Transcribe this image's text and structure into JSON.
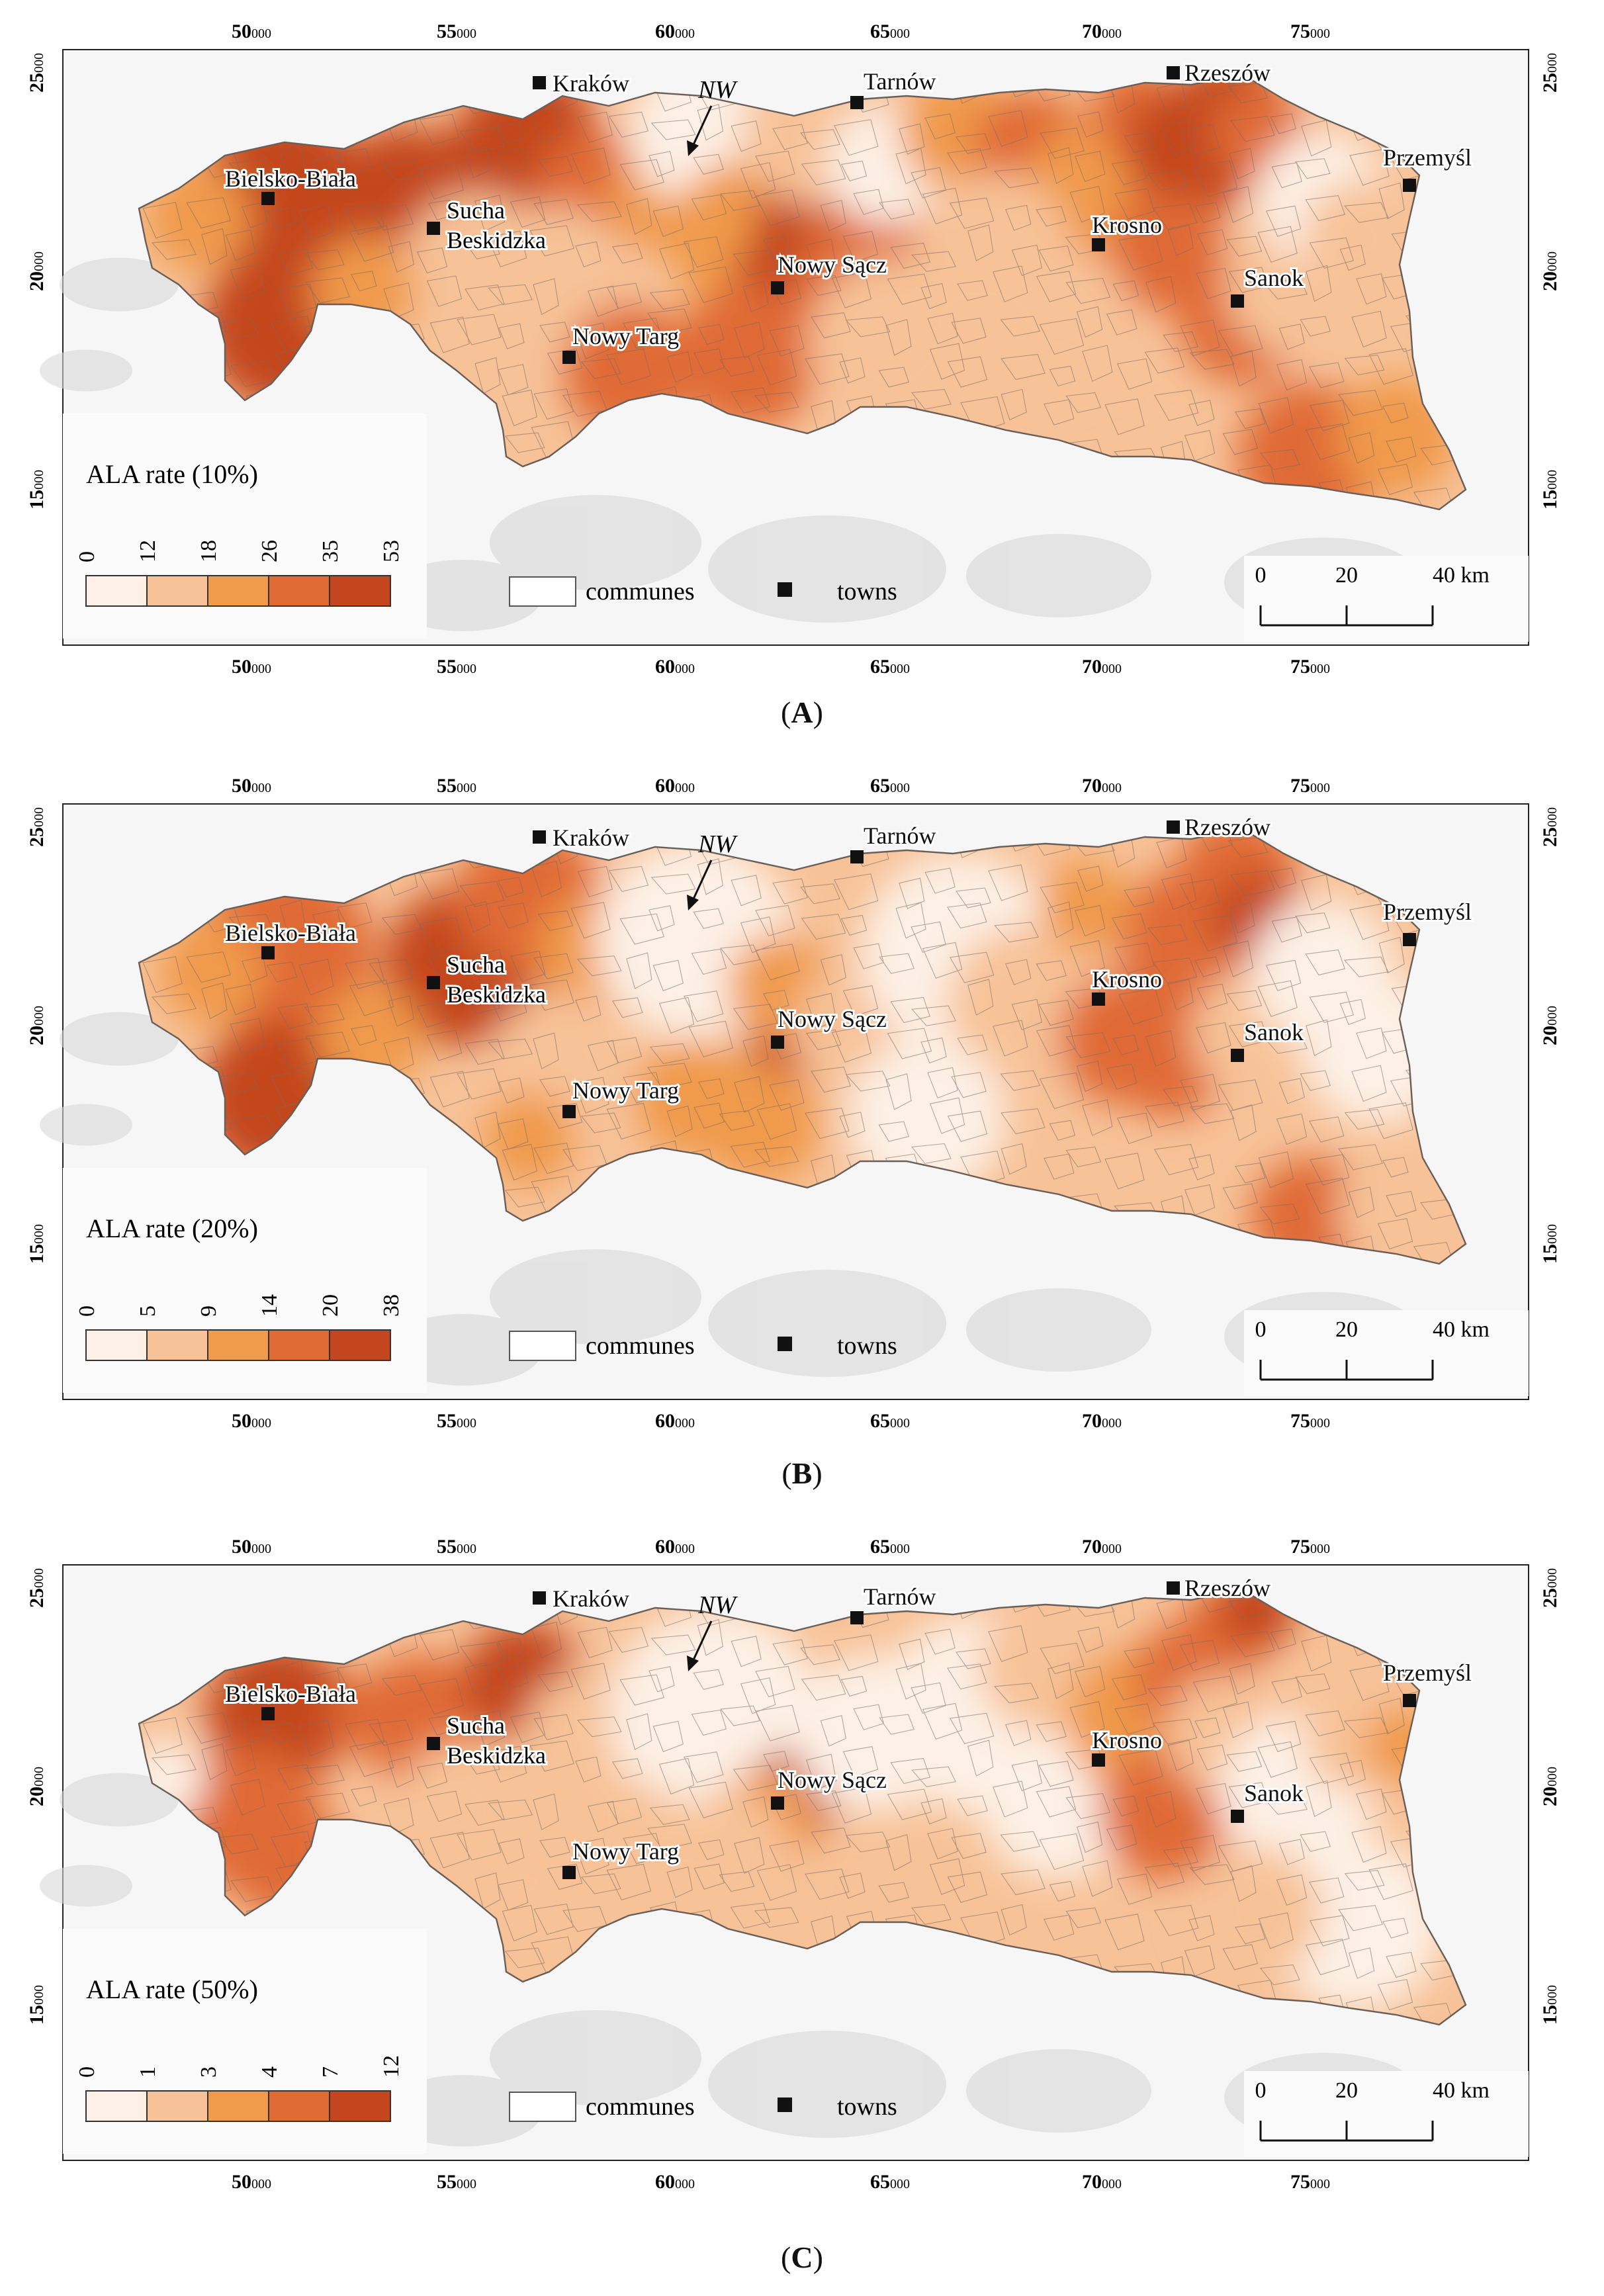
{
  "panels": [
    {
      "caption_letter": "A",
      "legend_title": "ALA rate (10%)",
      "breaks": [
        "0",
        "12",
        "18",
        "26",
        "35",
        "53"
      ]
    },
    {
      "caption_letter": "B",
      "legend_title": "ALA rate (20%)",
      "breaks": [
        "0",
        "5",
        "9",
        "14",
        "20",
        "38"
      ]
    },
    {
      "caption_letter": "C",
      "legend_title": "ALA rate (50%)",
      "breaks": [
        "0",
        "1",
        "3",
        "4",
        "7",
        "12"
      ]
    }
  ],
  "class_colors": [
    "#fdf0e6",
    "#f7c298",
    "#f09a4c",
    "#e06a34",
    "#c4461e"
  ],
  "axis": {
    "x_ticks": [
      {
        "major": "50",
        "minor": "000"
      },
      {
        "major": "55",
        "minor": "000"
      },
      {
        "major": "60",
        "minor": "000"
      },
      {
        "major": "65",
        "minor": "000"
      },
      {
        "major": "70",
        "minor": "000"
      },
      {
        "major": "75",
        "minor": "000"
      }
    ],
    "y_ticks": [
      {
        "major": "25",
        "minor": "000"
      },
      {
        "major": "20",
        "minor": "000"
      },
      {
        "major": "15",
        "minor": "000"
      }
    ]
  },
  "towns": [
    "Kraków",
    "Tarnów",
    "Rzeszów",
    "Przemyśl",
    "Bielsko-Biała",
    "Krosno",
    "Nowy Sącz",
    "Sanok",
    "Nowy Targ"
  ],
  "town_sucha": {
    "line1": "Sucha",
    "line2": "Beskidzka"
  },
  "north_label": "NW",
  "legend": {
    "communes_label": "communes",
    "towns_label": "towns"
  },
  "scale_bar": {
    "labels": [
      "0",
      "20",
      "40 km"
    ]
  },
  "paren_open": "(",
  "paren_close": ")"
}
